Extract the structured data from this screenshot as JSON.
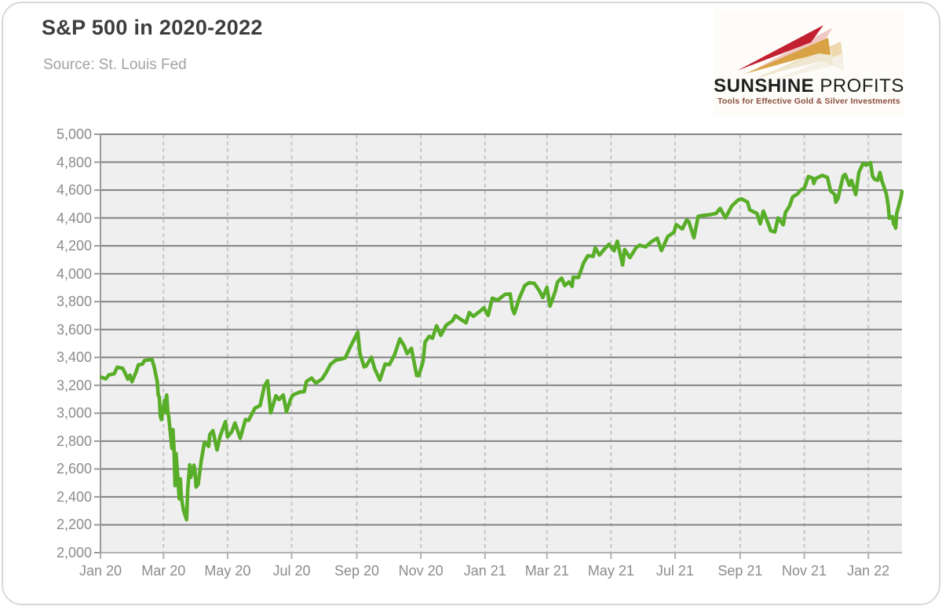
{
  "page": {
    "title": "S&P 500 in 2020-2022",
    "source": "Source: St. Louis Fed"
  },
  "logo": {
    "brand_primary": "SUNSHINE",
    "brand_secondary": " PROFITS",
    "tagline": "Tools for Effective Gold & Silver Investments",
    "colors": {
      "brand_text": "#1f1f1f",
      "tagline_text": "#8a4c3c",
      "arrow_red": "#c32032",
      "arrow_red_shadow": "#edc0b8",
      "arrow_gold": "#d8a245",
      "arrow_gold_shadow": "#ead2a0",
      "arrow_beige": "#efe7d2",
      "arrow_beige_shadow": "#f4f0e3"
    }
  },
  "chart_data": {
    "type": "line",
    "title": "S&P 500 in 2020-2022",
    "source": "St. Louis Fed",
    "xlabel": "",
    "ylabel": "",
    "ylim": [
      2000,
      5000
    ],
    "x_range": [
      "2020-01-01",
      "2022-02-02"
    ],
    "grid": "horizontal solid gray, vertical dashed light gray every 2 months",
    "legend": "none",
    "style": {
      "plot_bg": "#f0efef",
      "grid_solid": "#828282",
      "grid_dashed": "#c7c7c7",
      "axis_left": "#9a9a9a",
      "axis_bottom": "#b3b3b3",
      "tick_label_color": "#8c8c8c"
    },
    "y_ticks": [
      {
        "value": 2000,
        "label": "2,000"
      },
      {
        "value": 2200,
        "label": "2,200"
      },
      {
        "value": 2400,
        "label": "2,400"
      },
      {
        "value": 2600,
        "label": "2,600"
      },
      {
        "value": 2800,
        "label": "2,800"
      },
      {
        "value": 3000,
        "label": "3,000"
      },
      {
        "value": 3200,
        "label": "3,200"
      },
      {
        "value": 3400,
        "label": "3,400"
      },
      {
        "value": 3600,
        "label": "3,600"
      },
      {
        "value": 3800,
        "label": "3,800"
      },
      {
        "value": 4000,
        "label": "4,000"
      },
      {
        "value": 4200,
        "label": "4,200"
      },
      {
        "value": 4400,
        "label": "4,400"
      },
      {
        "value": 4600,
        "label": "4,600"
      },
      {
        "value": 4800,
        "label": "4,800"
      },
      {
        "value": 5000,
        "label": "5,000"
      }
    ],
    "x_ticks": [
      {
        "date": "2020-01-01",
        "label": "Jan 20"
      },
      {
        "date": "2020-03-01",
        "label": "Mar 20"
      },
      {
        "date": "2020-05-01",
        "label": "May 20"
      },
      {
        "date": "2020-07-01",
        "label": "Jul 20"
      },
      {
        "date": "2020-09-01",
        "label": "Sep 20"
      },
      {
        "date": "2020-11-01",
        "label": "Nov 20"
      },
      {
        "date": "2021-01-01",
        "label": "Jan 21"
      },
      {
        "date": "2021-03-01",
        "label": "Mar 21"
      },
      {
        "date": "2021-05-01",
        "label": "May 21"
      },
      {
        "date": "2021-07-01",
        "label": "Jul 21"
      },
      {
        "date": "2021-09-01",
        "label": "Sep 21"
      },
      {
        "date": "2021-11-01",
        "label": "Nov 21"
      },
      {
        "date": "2022-01-01",
        "label": "Jan 22"
      }
    ],
    "series": [
      {
        "name": "S&P 500",
        "color": "#58ae28",
        "line_width": 4.6,
        "points": [
          [
            "2020-01-02",
            3258
          ],
          [
            "2020-01-06",
            3246
          ],
          [
            "2020-01-09",
            3275
          ],
          [
            "2020-01-14",
            3283
          ],
          [
            "2020-01-17",
            3330
          ],
          [
            "2020-01-22",
            3322
          ],
          [
            "2020-01-24",
            3295
          ],
          [
            "2020-01-27",
            3244
          ],
          [
            "2020-01-29",
            3273
          ],
          [
            "2020-01-31",
            3226
          ],
          [
            "2020-02-04",
            3298
          ],
          [
            "2020-02-06",
            3346
          ],
          [
            "2020-02-10",
            3352
          ],
          [
            "2020-02-12",
            3379
          ],
          [
            "2020-02-14",
            3380
          ],
          [
            "2020-02-19",
            3386
          ],
          [
            "2020-02-21",
            3338
          ],
          [
            "2020-02-24",
            3226
          ],
          [
            "2020-02-25",
            3128
          ],
          [
            "2020-02-26",
            3116
          ],
          [
            "2020-02-27",
            2979
          ],
          [
            "2020-02-28",
            2954
          ],
          [
            "2020-03-02",
            3090
          ],
          [
            "2020-03-03",
            3003
          ],
          [
            "2020-03-04",
            3130
          ],
          [
            "2020-03-05",
            3024
          ],
          [
            "2020-03-06",
            2972
          ],
          [
            "2020-03-09",
            2747
          ],
          [
            "2020-03-10",
            2882
          ],
          [
            "2020-03-11",
            2741
          ],
          [
            "2020-03-12",
            2481
          ],
          [
            "2020-03-13",
            2711
          ],
          [
            "2020-03-16",
            2386
          ],
          [
            "2020-03-17",
            2529
          ],
          [
            "2020-03-18",
            2398
          ],
          [
            "2020-03-20",
            2305
          ],
          [
            "2020-03-23",
            2237
          ],
          [
            "2020-03-24",
            2447
          ],
          [
            "2020-03-26",
            2630
          ],
          [
            "2020-03-27",
            2541
          ],
          [
            "2020-03-30",
            2627
          ],
          [
            "2020-03-31",
            2585
          ],
          [
            "2020-04-01",
            2471
          ],
          [
            "2020-04-03",
            2489
          ],
          [
            "2020-04-06",
            2664
          ],
          [
            "2020-04-08",
            2750
          ],
          [
            "2020-04-09",
            2790
          ],
          [
            "2020-04-13",
            2762
          ],
          [
            "2020-04-14",
            2846
          ],
          [
            "2020-04-17",
            2875
          ],
          [
            "2020-04-21",
            2737
          ],
          [
            "2020-04-24",
            2837
          ],
          [
            "2020-04-29",
            2940
          ],
          [
            "2020-05-01",
            2831
          ],
          [
            "2020-05-05",
            2868
          ],
          [
            "2020-05-08",
            2930
          ],
          [
            "2020-05-13",
            2820
          ],
          [
            "2020-05-18",
            2954
          ],
          [
            "2020-05-21",
            2949
          ],
          [
            "2020-05-27",
            3036
          ],
          [
            "2020-06-01",
            3056
          ],
          [
            "2020-06-05",
            3194
          ],
          [
            "2020-06-08",
            3232
          ],
          [
            "2020-06-11",
            3002
          ],
          [
            "2020-06-16",
            3125
          ],
          [
            "2020-06-19",
            3098
          ],
          [
            "2020-06-23",
            3131
          ],
          [
            "2020-06-26",
            3009
          ],
          [
            "2020-06-30",
            3100
          ],
          [
            "2020-07-02",
            3130
          ],
          [
            "2020-07-09",
            3152
          ],
          [
            "2020-07-13",
            3155
          ],
          [
            "2020-07-15",
            3227
          ],
          [
            "2020-07-20",
            3252
          ],
          [
            "2020-07-24",
            3216
          ],
          [
            "2020-07-30",
            3246
          ],
          [
            "2020-08-03",
            3294
          ],
          [
            "2020-08-07",
            3351
          ],
          [
            "2020-08-12",
            3380
          ],
          [
            "2020-08-18",
            3390
          ],
          [
            "2020-08-21",
            3397
          ],
          [
            "2020-08-26",
            3478
          ],
          [
            "2020-08-28",
            3508
          ],
          [
            "2020-09-02",
            3581
          ],
          [
            "2020-09-04",
            3427
          ],
          [
            "2020-09-08",
            3332
          ],
          [
            "2020-09-10",
            3339
          ],
          [
            "2020-09-15",
            3401
          ],
          [
            "2020-09-18",
            3319
          ],
          [
            "2020-09-23",
            3237
          ],
          [
            "2020-09-28",
            3352
          ],
          [
            "2020-10-02",
            3348
          ],
          [
            "2020-10-07",
            3420
          ],
          [
            "2020-10-12",
            3534
          ],
          [
            "2020-10-16",
            3484
          ],
          [
            "2020-10-19",
            3427
          ],
          [
            "2020-10-23",
            3465
          ],
          [
            "2020-10-28",
            3271
          ],
          [
            "2020-10-30",
            3270
          ],
          [
            "2020-11-03",
            3369
          ],
          [
            "2020-11-05",
            3510
          ],
          [
            "2020-11-09",
            3551
          ],
          [
            "2020-11-12",
            3537
          ],
          [
            "2020-11-16",
            3627
          ],
          [
            "2020-11-20",
            3558
          ],
          [
            "2020-11-25",
            3630
          ],
          [
            "2020-12-01",
            3662
          ],
          [
            "2020-12-04",
            3699
          ],
          [
            "2020-12-09",
            3673
          ],
          [
            "2020-12-14",
            3648
          ],
          [
            "2020-12-17",
            3722
          ],
          [
            "2020-12-21",
            3695
          ],
          [
            "2020-12-28",
            3735
          ],
          [
            "2020-12-31",
            3756
          ],
          [
            "2021-01-04",
            3701
          ],
          [
            "2021-01-08",
            3825
          ],
          [
            "2021-01-13",
            3810
          ],
          [
            "2021-01-20",
            3852
          ],
          [
            "2021-01-25",
            3855
          ],
          [
            "2021-01-27",
            3751
          ],
          [
            "2021-01-29",
            3714
          ],
          [
            "2021-02-03",
            3830
          ],
          [
            "2021-02-08",
            3916
          ],
          [
            "2021-02-12",
            3935
          ],
          [
            "2021-02-17",
            3931
          ],
          [
            "2021-02-22",
            3876
          ],
          [
            "2021-02-25",
            3829
          ],
          [
            "2021-03-01",
            3902
          ],
          [
            "2021-03-04",
            3768
          ],
          [
            "2021-03-09",
            3875
          ],
          [
            "2021-03-11",
            3939
          ],
          [
            "2021-03-15",
            3969
          ],
          [
            "2021-03-18",
            3915
          ],
          [
            "2021-03-22",
            3941
          ],
          [
            "2021-03-25",
            3910
          ],
          [
            "2021-03-26",
            3975
          ],
          [
            "2021-03-31",
            3973
          ],
          [
            "2021-04-05",
            4078
          ],
          [
            "2021-04-09",
            4129
          ],
          [
            "2021-04-14",
            4125
          ],
          [
            "2021-04-16",
            4185
          ],
          [
            "2021-04-20",
            4134
          ],
          [
            "2021-04-26",
            4187
          ],
          [
            "2021-04-29",
            4211
          ],
          [
            "2021-05-04",
            4165
          ],
          [
            "2021-05-07",
            4233
          ],
          [
            "2021-05-12",
            4063
          ],
          [
            "2021-05-14",
            4174
          ],
          [
            "2021-05-19",
            4116
          ],
          [
            "2021-05-25",
            4188
          ],
          [
            "2021-05-28",
            4204
          ],
          [
            "2021-06-03",
            4193
          ],
          [
            "2021-06-08",
            4227
          ],
          [
            "2021-06-14",
            4255
          ],
          [
            "2021-06-18",
            4166
          ],
          [
            "2021-06-24",
            4266
          ],
          [
            "2021-06-30",
            4298
          ],
          [
            "2021-07-02",
            4352
          ],
          [
            "2021-07-08",
            4321
          ],
          [
            "2021-07-12",
            4385
          ],
          [
            "2021-07-14",
            4374
          ],
          [
            "2021-07-19",
            4258
          ],
          [
            "2021-07-23",
            4412
          ],
          [
            "2021-07-29",
            4419
          ],
          [
            "2021-08-03",
            4423
          ],
          [
            "2021-08-09",
            4432
          ],
          [
            "2021-08-13",
            4468
          ],
          [
            "2021-08-18",
            4400
          ],
          [
            "2021-08-24",
            4486
          ],
          [
            "2021-08-30",
            4529
          ],
          [
            "2021-09-02",
            4537
          ],
          [
            "2021-09-08",
            4514
          ],
          [
            "2021-09-10",
            4459
          ],
          [
            "2021-09-14",
            4443
          ],
          [
            "2021-09-17",
            4433
          ],
          [
            "2021-09-20",
            4358
          ],
          [
            "2021-09-23",
            4449
          ],
          [
            "2021-09-28",
            4353
          ],
          [
            "2021-09-30",
            4308
          ],
          [
            "2021-10-04",
            4300
          ],
          [
            "2021-10-07",
            4400
          ],
          [
            "2021-10-12",
            4351
          ],
          [
            "2021-10-14",
            4438
          ],
          [
            "2021-10-18",
            4486
          ],
          [
            "2021-10-21",
            4550
          ],
          [
            "2021-10-26",
            4575
          ],
          [
            "2021-10-28",
            4596
          ],
          [
            "2021-11-01",
            4614
          ],
          [
            "2021-11-05",
            4698
          ],
          [
            "2021-11-09",
            4685
          ],
          [
            "2021-11-10",
            4647
          ],
          [
            "2021-11-12",
            4683
          ],
          [
            "2021-11-18",
            4705
          ],
          [
            "2021-11-23",
            4691
          ],
          [
            "2021-11-26",
            4595
          ],
          [
            "2021-11-30",
            4567
          ],
          [
            "2021-12-01",
            4513
          ],
          [
            "2021-12-03",
            4538
          ],
          [
            "2021-12-08",
            4701
          ],
          [
            "2021-12-10",
            4712
          ],
          [
            "2021-12-14",
            4634
          ],
          [
            "2021-12-16",
            4669
          ],
          [
            "2021-12-20",
            4568
          ],
          [
            "2021-12-23",
            4726
          ],
          [
            "2021-12-27",
            4791
          ],
          [
            "2021-12-30",
            4779
          ],
          [
            "2022-01-03",
            4797
          ],
          [
            "2022-01-05",
            4701
          ],
          [
            "2022-01-07",
            4677
          ],
          [
            "2022-01-10",
            4670
          ],
          [
            "2022-01-12",
            4726
          ],
          [
            "2022-01-14",
            4663
          ],
          [
            "2022-01-18",
            4577
          ],
          [
            "2022-01-19",
            4533
          ],
          [
            "2022-01-20",
            4483
          ],
          [
            "2022-01-21",
            4398
          ],
          [
            "2022-01-24",
            4410
          ],
          [
            "2022-01-25",
            4356
          ],
          [
            "2022-01-26",
            4350
          ],
          [
            "2022-01-27",
            4327
          ],
          [
            "2022-01-28",
            4432
          ],
          [
            "2022-01-31",
            4516
          ],
          [
            "2022-02-01",
            4547
          ],
          [
            "2022-02-02",
            4589
          ]
        ]
      }
    ]
  }
}
